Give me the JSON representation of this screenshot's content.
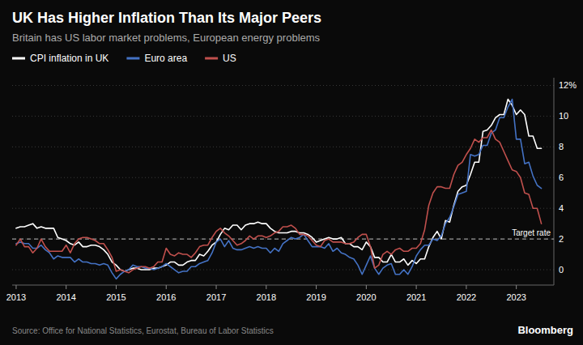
{
  "chart_data": {
    "type": "line",
    "title": "UK Has Higher Inflation Than Its Major Peers",
    "subtitle": "Britain has US labor market problems, European energy problems",
    "source": "Source: Office for National Statistics, Eurostat, Bureau of Labor Statistics",
    "brand": "Bloomberg",
    "legend": "top-left",
    "grid": true,
    "annotations": [
      {
        "label": "Target rate",
        "value": 2.0
      }
    ],
    "x": [
      2013.0,
      2013.083,
      2013.167,
      2013.25,
      2013.333,
      2013.417,
      2013.5,
      2013.583,
      2013.667,
      2013.75,
      2013.833,
      2013.917,
      2014.0,
      2014.083,
      2014.167,
      2014.25,
      2014.333,
      2014.417,
      2014.5,
      2014.583,
      2014.667,
      2014.75,
      2014.833,
      2014.917,
      2015.0,
      2015.083,
      2015.167,
      2015.25,
      2015.333,
      2015.417,
      2015.5,
      2015.583,
      2015.667,
      2015.75,
      2015.833,
      2015.917,
      2016.0,
      2016.083,
      2016.167,
      2016.25,
      2016.333,
      2016.417,
      2016.5,
      2016.583,
      2016.667,
      2016.75,
      2016.833,
      2016.917,
      2017.0,
      2017.083,
      2017.167,
      2017.25,
      2017.333,
      2017.417,
      2017.5,
      2017.583,
      2017.667,
      2017.75,
      2017.833,
      2017.917,
      2018.0,
      2018.083,
      2018.167,
      2018.25,
      2018.333,
      2018.417,
      2018.5,
      2018.583,
      2018.667,
      2018.75,
      2018.833,
      2018.917,
      2019.0,
      2019.083,
      2019.167,
      2019.25,
      2019.333,
      2019.417,
      2019.5,
      2019.583,
      2019.667,
      2019.75,
      2019.833,
      2019.917,
      2020.0,
      2020.083,
      2020.167,
      2020.25,
      2020.333,
      2020.417,
      2020.5,
      2020.583,
      2020.667,
      2020.75,
      2020.833,
      2020.917,
      2021.0,
      2021.083,
      2021.167,
      2021.25,
      2021.333,
      2021.417,
      2021.5,
      2021.583,
      2021.667,
      2021.75,
      2021.833,
      2021.917,
      2022.0,
      2022.083,
      2022.167,
      2022.25,
      2022.333,
      2022.417,
      2022.5,
      2022.583,
      2022.667,
      2022.75,
      2022.833,
      2022.917,
      2023.0,
      2023.083,
      2023.167,
      2023.25,
      2023.333,
      2023.417,
      2023.5
    ],
    "series": [
      {
        "name": "CPI inflation in UK",
        "color": "#ffffff",
        "values": [
          2.7,
          2.8,
          2.8,
          2.9,
          3.0,
          2.7,
          2.8,
          2.7,
          2.7,
          2.7,
          2.1,
          2.0,
          1.9,
          1.7,
          1.6,
          1.8,
          1.5,
          1.5,
          1.6,
          1.6,
          1.5,
          1.3,
          1.0,
          0.5,
          0.3,
          0.0,
          -0.1,
          0.0,
          0.1,
          0.1,
          0.0,
          0.0,
          0.0,
          0.1,
          0.1,
          0.2,
          0.3,
          0.5,
          0.5,
          0.3,
          0.3,
          0.5,
          0.6,
          0.6,
          1.0,
          0.9,
          1.2,
          1.6,
          1.8,
          2.3,
          2.7,
          2.6,
          2.9,
          2.9,
          2.6,
          2.9,
          3.0,
          3.0,
          3.1,
          3.0,
          3.0,
          2.7,
          2.5,
          2.4,
          2.4,
          2.4,
          2.5,
          2.5,
          2.4,
          2.4,
          2.3,
          2.1,
          1.8,
          1.9,
          2.0,
          2.1,
          2.0,
          2.0,
          2.1,
          1.7,
          1.7,
          1.5,
          1.5,
          1.3,
          1.8,
          1.5,
          0.8,
          0.8,
          0.5,
          0.5,
          1.0,
          0.5,
          0.5,
          0.7,
          0.3,
          0.6,
          0.4,
          0.7,
          0.7,
          1.5,
          2.1,
          2.5,
          2.0,
          3.2,
          3.1,
          4.2,
          5.1,
          5.4,
          5.5,
          6.2,
          7.0,
          7.0,
          9.0,
          9.1,
          9.4,
          9.9,
          10.1,
          10.1,
          11.1,
          10.7,
          10.1,
          10.4,
          10.1,
          8.7,
          8.7,
          7.9,
          7.9
        ]
      },
      {
        "name": "Euro area",
        "color": "#4472c4",
        "values": [
          1.7,
          1.8,
          1.7,
          1.7,
          1.4,
          1.4,
          1.6,
          1.3,
          1.1,
          0.7,
          0.9,
          0.8,
          0.8,
          0.8,
          0.5,
          0.7,
          0.5,
          0.5,
          0.4,
          0.4,
          0.3,
          0.4,
          0.3,
          -0.2,
          -0.6,
          -0.3,
          -0.1,
          0.0,
          0.3,
          0.2,
          0.2,
          0.1,
          0.1,
          0.0,
          0.1,
          0.2,
          0.4,
          0.2,
          0.0,
          -0.2,
          -0.1,
          -0.1,
          0.2,
          0.2,
          0.4,
          0.5,
          0.6,
          1.1,
          1.8,
          2.0,
          1.5,
          1.9,
          1.4,
          1.3,
          1.3,
          1.4,
          1.5,
          1.4,
          1.5,
          1.4,
          1.4,
          1.1,
          1.4,
          1.2,
          1.7,
          1.9,
          2.1,
          2.0,
          2.1,
          2.3,
          1.9,
          1.5,
          1.5,
          1.5,
          1.4,
          1.7,
          1.2,
          1.4,
          1.1,
          1.0,
          0.8,
          0.7,
          0.3,
          -0.3,
          0.3,
          0.9,
          0.1,
          -0.3,
          0.1,
          0.3,
          0.4,
          -0.3,
          -0.3,
          0.0,
          -0.3,
          0.2,
          0.9,
          1.3,
          1.6,
          1.6,
          2.0,
          1.9,
          2.2,
          3.0,
          3.4,
          4.1,
          4.9,
          5.0,
          5.1,
          7.5,
          7.4,
          7.5,
          8.1,
          8.1,
          8.9,
          9.1,
          9.9,
          9.9,
          10.6,
          11.1,
          8.5,
          8.5,
          6.9,
          7.0,
          6.1,
          5.5,
          5.3
        ]
      },
      {
        "name": "US",
        "color": "#c0504d",
        "values": [
          1.6,
          2.0,
          1.5,
          1.5,
          1.1,
          1.4,
          2.0,
          1.5,
          1.2,
          1.2,
          1.2,
          1.2,
          1.6,
          1.1,
          1.7,
          2.0,
          2.1,
          2.1,
          2.0,
          1.9,
          1.7,
          1.7,
          1.3,
          0.8,
          -0.1,
          0.0,
          -0.1,
          -0.2,
          0.0,
          0.1,
          0.2,
          0.2,
          0.1,
          0.2,
          0.5,
          0.5,
          1.4,
          1.0,
          0.9,
          1.1,
          1.0,
          1.0,
          0.8,
          1.1,
          1.5,
          1.6,
          1.6,
          2.1,
          2.5,
          2.7,
          2.4,
          2.2,
          1.9,
          1.6,
          1.7,
          1.9,
          2.2,
          2.0,
          2.2,
          2.2,
          2.1,
          2.2,
          2.4,
          2.5,
          2.8,
          2.8,
          2.9,
          2.7,
          2.3,
          2.3,
          2.2,
          1.9,
          1.6,
          1.5,
          1.9,
          2.0,
          1.8,
          1.8,
          1.8,
          1.7,
          1.7,
          1.8,
          2.1,
          2.3,
          2.3,
          1.5,
          0.1,
          0.3,
          1.0,
          1.2,
          1.0,
          1.3,
          1.4,
          1.2,
          1.2,
          1.4,
          1.4,
          1.7,
          2.6,
          4.2,
          5.0,
          5.4,
          5.4,
          5.3,
          5.3,
          6.2,
          6.8,
          7.0,
          7.5,
          7.9,
          8.5,
          8.3,
          8.6,
          8.6,
          9.1,
          8.5,
          8.3,
          7.7,
          7.1,
          6.5,
          6.4,
          6.0,
          5.0,
          4.9,
          4.0,
          4.0,
          3.0
        ]
      }
    ],
    "xlim": [
      2012.92,
      2023.75
    ],
    "xticks": [
      2013,
      2014,
      2015,
      2016,
      2017,
      2018,
      2019,
      2020,
      2021,
      2022,
      2023
    ],
    "ylim": [
      -1.0,
      12.5
    ],
    "yticks": [
      0,
      2,
      4,
      6,
      8,
      10,
      {
        "value": 12,
        "label": "12%"
      }
    ]
  }
}
